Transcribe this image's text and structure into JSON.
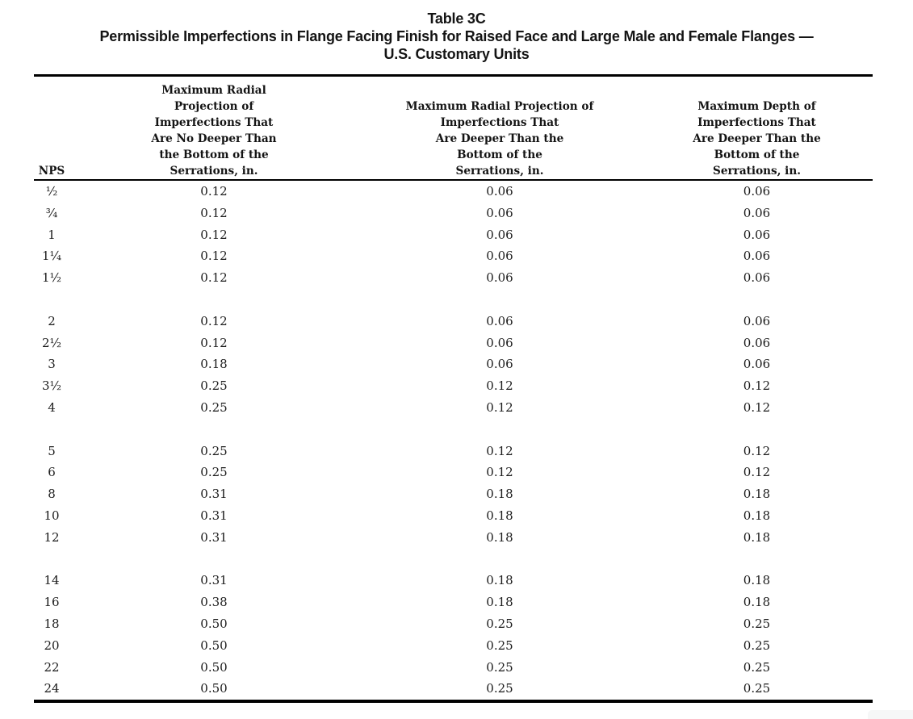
{
  "page": {
    "title": "Table 3C",
    "subtitle_line1": "Permissible Imperfections in Flange Facing Finish for Raised Face and Large Male and Female Flanges —",
    "subtitle_line2": "U.S. Customary Units"
  },
  "colors": {
    "text": "#1b1b1b",
    "rule": "#000000",
    "background": "#ffffff"
  },
  "table": {
    "headers": {
      "nps": "NPS",
      "col_no_deeper": "Maximum Radial\nProjection of\nImperfections That\nAre No Deeper Than\nthe Bottom of the\nSerrations, in.",
      "col_deeper": "Maximum Radial Projection of\nImperfections That\nAre Deeper Than the\nBottom of the\nSerrations, in.",
      "col_depth": "Maximum Depth of\nImperfections That\nAre Deeper Than the\nBottom of the\nSerrations, in."
    },
    "groups": [
      [
        [
          "½",
          "0.12",
          "0.06",
          "0.06"
        ],
        [
          "¾",
          "0.12",
          "0.06",
          "0.06"
        ],
        [
          "1",
          "0.12",
          "0.06",
          "0.06"
        ],
        [
          "1¼",
          "0.12",
          "0.06",
          "0.06"
        ],
        [
          "1½",
          "0.12",
          "0.06",
          "0.06"
        ]
      ],
      [
        [
          "2",
          "0.12",
          "0.06",
          "0.06"
        ],
        [
          "2½",
          "0.12",
          "0.06",
          "0.06"
        ],
        [
          "3",
          "0.18",
          "0.06",
          "0.06"
        ],
        [
          "3½",
          "0.25",
          "0.12",
          "0.12"
        ],
        [
          "4",
          "0.25",
          "0.12",
          "0.12"
        ]
      ],
      [
        [
          "5",
          "0.25",
          "0.12",
          "0.12"
        ],
        [
          "6",
          "0.25",
          "0.12",
          "0.12"
        ],
        [
          "8",
          "0.31",
          "0.18",
          "0.18"
        ],
        [
          "10",
          "0.31",
          "0.18",
          "0.18"
        ],
        [
          "12",
          "0.31",
          "0.18",
          "0.18"
        ]
      ],
      [
        [
          "14",
          "0.31",
          "0.18",
          "0.18"
        ],
        [
          "16",
          "0.38",
          "0.18",
          "0.18"
        ],
        [
          "18",
          "0.50",
          "0.25",
          "0.25"
        ],
        [
          "20",
          "0.50",
          "0.25",
          "0.25"
        ],
        [
          "22",
          "0.50",
          "0.25",
          "0.25"
        ],
        [
          "24",
          "0.50",
          "0.25",
          "0.25"
        ]
      ]
    ]
  }
}
